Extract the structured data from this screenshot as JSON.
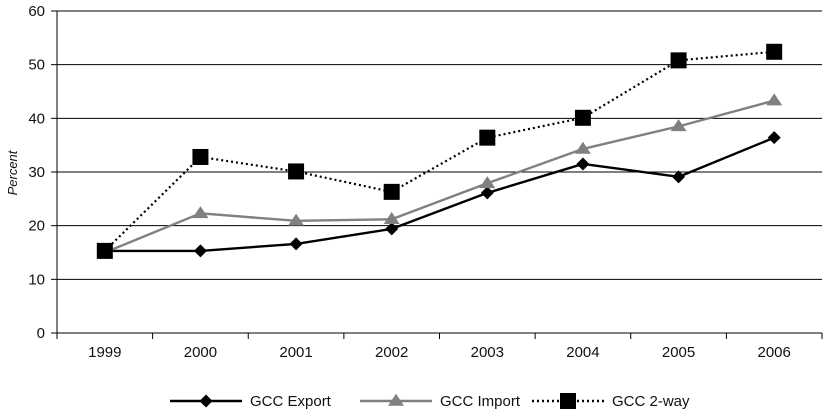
{
  "chart_data": {
    "type": "line",
    "title": "",
    "xlabel": "",
    "ylabel": "Percent",
    "categories": [
      "1999",
      "2000",
      "2001",
      "2002",
      "2003",
      "2004",
      "2005",
      "2006"
    ],
    "ylim": [
      0,
      60
    ],
    "yticks": [
      "0",
      "10",
      "20",
      "30",
      "40",
      "50",
      "60"
    ],
    "grid": "horizontal",
    "legend_position": "bottom",
    "series": [
      {
        "name": "GCC Export",
        "marker": "diamond",
        "line_style": "solid",
        "color": "#000000",
        "values": [
          15.3,
          15.3,
          16.6,
          19.4,
          26.1,
          31.5,
          29.1,
          36.4
        ]
      },
      {
        "name": "GCC Import",
        "marker": "triangle",
        "line_style": "solid",
        "color": "#808080",
        "values": [
          15.0,
          22.3,
          20.9,
          21.2,
          27.9,
          34.3,
          38.5,
          43.3
        ]
      },
      {
        "name": "GCC 2-way",
        "marker": "square",
        "line_style": "dotted",
        "color": "#000000",
        "values": [
          15.3,
          32.8,
          30.1,
          26.3,
          36.4,
          40.1,
          50.8,
          52.4
        ]
      }
    ]
  }
}
